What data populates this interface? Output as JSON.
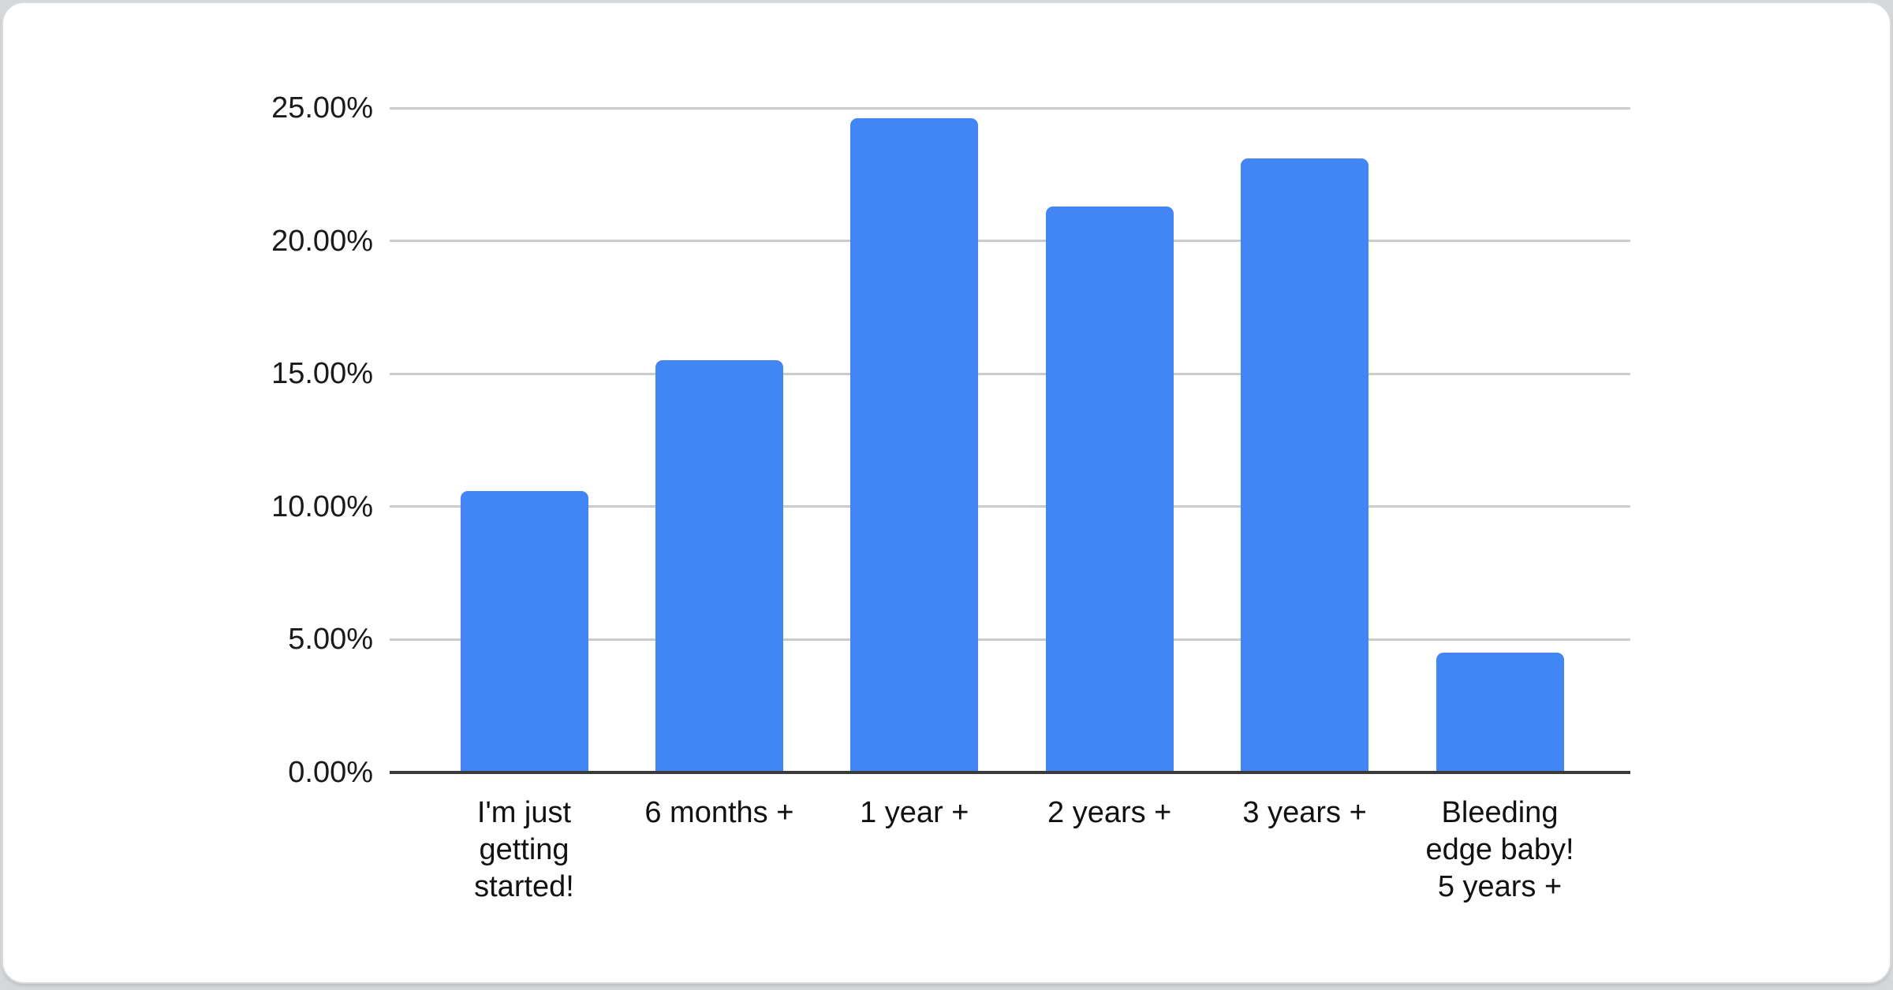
{
  "page": {
    "background_color": "#d4d8db",
    "card_background": "#ffffff",
    "card_border_color": "#d9dcdf"
  },
  "chart_data": {
    "type": "bar",
    "title": "",
    "xlabel": "",
    "ylabel": "",
    "categories": [
      "I'm just getting started!",
      "6 months +",
      "1 year +",
      "2 years +",
      "3 years +",
      "Bleeding edge baby! 5 years +"
    ],
    "category_lines": [
      [
        "I'm just",
        "getting",
        "started!"
      ],
      [
        "6 months +"
      ],
      [
        "1 year +"
      ],
      [
        "2 years +"
      ],
      [
        "3 years +"
      ],
      [
        "Bleeding",
        "edge baby!",
        "5 years +"
      ]
    ],
    "values": [
      10.6,
      15.5,
      24.6,
      21.3,
      23.1,
      4.5
    ],
    "unit": "%",
    "ylim": [
      0,
      25
    ],
    "ytick_interval": 5,
    "ytick_labels": [
      "0.00%",
      "5.00%",
      "10.00%",
      "15.00%",
      "20.00%",
      "25.00%"
    ],
    "grid": true,
    "legend": "none",
    "bar_color": "#4285f4",
    "gridline_color": "#cccccc",
    "axis_line_color": "#3a3a3a",
    "tick_label_color": "#1a1a1a",
    "category_label_color": "#111111"
  }
}
